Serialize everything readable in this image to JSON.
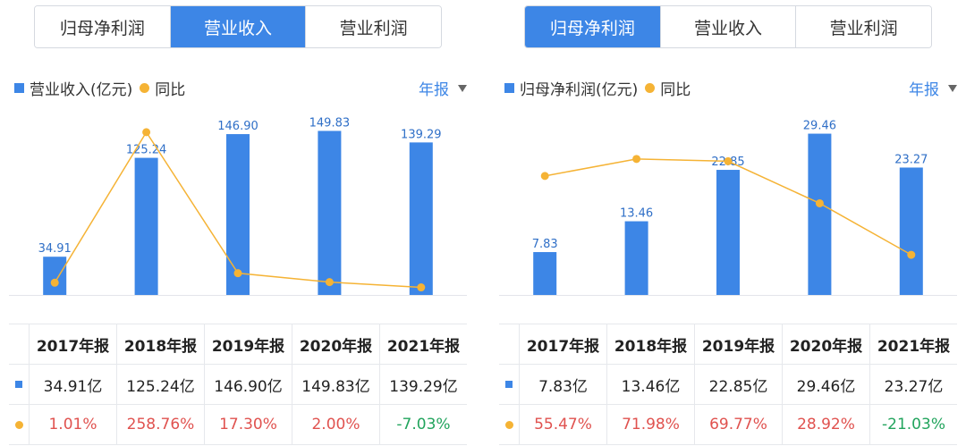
{
  "colors": {
    "bar": "#3d86e6",
    "line": "#f5b335",
    "positive": "#e0524f",
    "negative": "#22a45d"
  },
  "panels": [
    {
      "tabs": [
        {
          "label": "归母净利润",
          "active": false
        },
        {
          "label": "营业收入",
          "active": true
        },
        {
          "label": "营业利润",
          "active": false
        }
      ],
      "legend": {
        "bar_label": "营业收入(亿元)",
        "line_label": "同比"
      },
      "period_label": "年报",
      "table": {
        "headers": [
          "2017年报",
          "2018年报",
          "2019年报",
          "2020年报",
          "2021年报"
        ],
        "values": [
          "34.91亿",
          "125.24亿",
          "146.90亿",
          "149.83亿",
          "139.29亿"
        ],
        "yoy": [
          "1.01%",
          "258.76%",
          "17.30%",
          "2.00%",
          "-7.03%"
        ]
      }
    },
    {
      "tabs": [
        {
          "label": "归母净利润",
          "active": true
        },
        {
          "label": "营业收入",
          "active": false
        },
        {
          "label": "营业利润",
          "active": false
        }
      ],
      "legend": {
        "bar_label": "归母净利润(亿元)",
        "line_label": "同比"
      },
      "period_label": "年报",
      "table": {
        "headers": [
          "2017年报",
          "2018年报",
          "2019年报",
          "2020年报",
          "2021年报"
        ],
        "values": [
          "7.83亿",
          "13.46亿",
          "22.85亿",
          "29.46亿",
          "23.27亿"
        ],
        "yoy": [
          "55.47%",
          "71.98%",
          "69.77%",
          "28.92%",
          "-21.03%"
        ]
      }
    }
  ],
  "chart_data": [
    {
      "type": "bar",
      "categories": [
        "2017年报",
        "2018年报",
        "2019年报",
        "2020年报",
        "2021年报"
      ],
      "series": [
        {
          "name": "营业收入(亿元)",
          "type": "bar",
          "values": [
            34.91,
            125.24,
            146.9,
            149.83,
            139.29
          ],
          "labels": [
            "34.91",
            "125.24",
            "146.90",
            "149.83",
            "139.29"
          ]
        },
        {
          "name": "同比",
          "type": "line",
          "values": [
            1.01,
            258.76,
            17.3,
            2.0,
            -7.03
          ]
        }
      ],
      "bar_range": [
        0,
        160
      ],
      "line_range": [
        -20,
        280
      ],
      "grid": false,
      "legend": "top-left"
    },
    {
      "type": "bar",
      "categories": [
        "2017年报",
        "2018年报",
        "2019年报",
        "2020年报",
        "2021年报"
      ],
      "series": [
        {
          "name": "归母净利润(亿元)",
          "type": "bar",
          "values": [
            7.83,
            13.46,
            22.85,
            29.46,
            23.27
          ],
          "labels": [
            "7.83",
            "13.46",
            "22.85",
            "29.46",
            "23.27"
          ]
        },
        {
          "name": "同比",
          "type": "line",
          "values": [
            55.47,
            71.98,
            69.77,
            28.92,
            -21.03
          ]
        }
      ],
      "bar_range": [
        0,
        32
      ],
      "line_range": [
        -60,
        110
      ],
      "grid": false,
      "legend": "top-left"
    }
  ]
}
